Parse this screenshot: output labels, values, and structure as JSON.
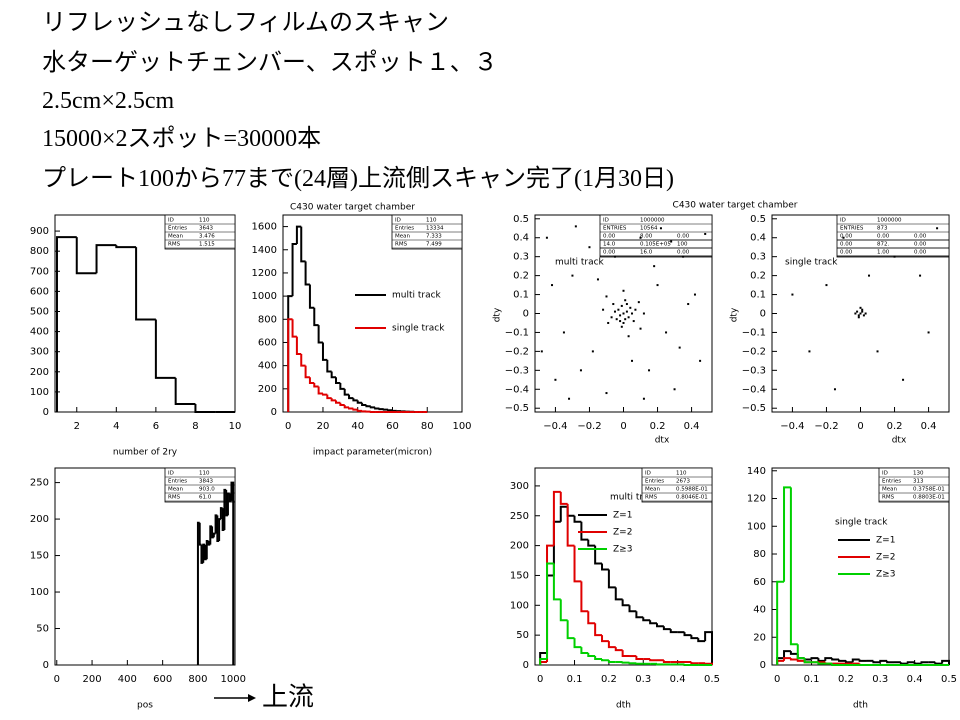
{
  "header": {
    "lines": [
      "リフレッシュなしフィルムのスキャン",
      "水ターゲットチェンバー、スポット１、３",
      "2.5cm×2.5cm",
      "15000×2スポット=30000本",
      "プレート100から77まで(24層)上流側スキャン完了(1月30日)"
    ]
  },
  "footer": {
    "label": "上流"
  },
  "chart_data": [
    {
      "type": "histogram",
      "xlabel": "number of 2ry",
      "color": "#000000",
      "bins": [
        1,
        2,
        3,
        4,
        5,
        6,
        7,
        8,
        9,
        10
      ],
      "values": [
        870,
        690,
        830,
        820,
        460,
        170,
        40,
        0,
        0
      ],
      "xlim": [
        0.9,
        10
      ],
      "ylim": [
        0,
        980
      ],
      "xticks": [
        2,
        4,
        6,
        8,
        10
      ],
      "yticks": [
        0,
        100,
        200,
        300,
        400,
        500,
        600,
        700,
        800,
        900
      ],
      "stats": {
        "rows": [
          [
            "ID",
            "110"
          ],
          [
            "Entries",
            "3643"
          ],
          [
            "Mean",
            "3.476"
          ],
          [
            "RMS",
            "1.515"
          ]
        ]
      }
    },
    {
      "type": "histogram",
      "title": "C430 water target chamber",
      "xlabel": "impact parameter(micron)",
      "bins": [
        0,
        2.5,
        5,
        7.5,
        10,
        12.5,
        15,
        17.5,
        20,
        22.5,
        25,
        27.5,
        30,
        32.5,
        35,
        37.5,
        40,
        42.5,
        45,
        47.5,
        50,
        52.5,
        55,
        57.5,
        60,
        62.5,
        65,
        67.5,
        70,
        72.5,
        75,
        77.5,
        80
      ],
      "series": [
        {
          "name": "multi track",
          "color": "#000000",
          "values": [
            1000,
            1450,
            1600,
            1300,
            1100,
            900,
            750,
            600,
            450,
            350,
            300,
            250,
            200,
            150,
            120,
            100,
            80,
            60,
            50,
            40,
            30,
            25,
            20,
            15,
            10,
            8,
            5,
            3,
            2,
            0,
            0,
            0
          ]
        },
        {
          "name": "single track",
          "color": "#e00000",
          "values": [
            800,
            650,
            500,
            400,
            300,
            250,
            220,
            160,
            150,
            120,
            100,
            80,
            60,
            40,
            30,
            20,
            10,
            5,
            3,
            0,
            0,
            0,
            0,
            0,
            0,
            0,
            0,
            0,
            0,
            0,
            0,
            0
          ]
        }
      ],
      "xlim": [
        -3,
        100
      ],
      "ylim": [
        0,
        1700
      ],
      "xticks": [
        0,
        20,
        40,
        60,
        80,
        100
      ],
      "yticks": [
        0,
        200,
        400,
        600,
        800,
        1000,
        1200,
        1400,
        1600
      ],
      "stats": {
        "rows": [
          [
            "ID",
            "110"
          ],
          [
            "Entries",
            "13334"
          ],
          [
            "Mean",
            "7.333"
          ],
          [
            "RMS",
            "7.499"
          ]
        ]
      }
    },
    {
      "type": "scatter",
      "title": "C430 water target chamber",
      "xlabel": "dtx",
      "ylabel": "dty",
      "annotation": "multi track",
      "color": "#000000",
      "x": [
        0,
        0.02,
        -0.02,
        0.01,
        -0.03,
        0.04,
        -0.01,
        0.03,
        -0.04,
        0.05,
        -0.05,
        0,
        0.02,
        -0.02,
        0.06,
        -0.06,
        0.07,
        -0.07,
        0.01,
        -0.01,
        0.09,
        -0.09,
        0.1,
        -0.1,
        0.12,
        -0.12,
        0,
        0.03,
        0.2,
        -0.18,
        0.25,
        -0.3,
        0.35,
        -0.4,
        0.42,
        -0.45,
        0.15,
        -0.2,
        0.3,
        -0.35,
        0.1,
        -0.1,
        0.45,
        -0.25,
        0.22,
        -0.05,
        0.05,
        0.38,
        -0.42,
        0.18,
        -0.15,
        0.28,
        -0.32,
        0.48,
        -0.48,
        0.12,
        -0.28,
        0.33
      ],
      "y": [
        0,
        0.01,
        -0.01,
        -0.03,
        0.02,
        0.03,
        0.04,
        -0.02,
        -0.03,
        0,
        0.01,
        -0.05,
        0.05,
        -0.04,
        -0.04,
        0.05,
        0.02,
        -0.02,
        0.07,
        -0.07,
        0.06,
        -0.05,
        -0.08,
        0.09,
        0,
        0.02,
        0.12,
        -0.12,
        0.15,
        -0.2,
        -0.1,
        0.2,
        0.3,
        -0.35,
        0.1,
        0.4,
        -0.3,
        0.35,
        -0.4,
        -0.1,
        0.4,
        -0.42,
        -0.25,
        -0.3,
        0.45,
        0.3,
        -0.25,
        0.05,
        0.15,
        0.25,
        0.18,
        0.38,
        -0.45,
        0.42,
        -0.2,
        -0.45,
        0.46,
        -0.18
      ],
      "xlim": [
        -0.52,
        0.52
      ],
      "ylim": [
        -0.52,
        0.52
      ],
      "xticks": [
        {
          "value": -0.4,
          "label": "−0.4"
        },
        {
          "value": -0.2,
          "label": "−0.2"
        },
        0,
        0.2,
        0.4
      ],
      "yticks": [
        {
          "value": -0.5,
          "label": "−0.5"
        },
        {
          "value": -0.4,
          "label": "−0.4"
        },
        {
          "value": -0.3,
          "label": "−0.3"
        },
        {
          "value": -0.2,
          "label": "−0.2"
        },
        {
          "value": -0.1,
          "label": "−0.1"
        },
        0,
        0.1,
        0.2,
        0.3,
        0.4,
        0.5
      ],
      "stats": {
        "rows": [
          [
            "ID",
            "1000000"
          ],
          [
            "ENTRIES",
            "10564"
          ]
        ],
        "grid": [
          [
            "0.00",
            "8.00",
            "0.00"
          ],
          [
            "14.0",
            "0.105E+05",
            "100"
          ],
          [
            "0.00",
            "16.0",
            "0.00"
          ]
        ]
      }
    },
    {
      "type": "scatter",
      "xlabel": "dtx",
      "ylabel": "dty",
      "annotation": "single track",
      "color": "#000000",
      "x": [
        0,
        0.01,
        -0.01,
        0.02,
        -0.02,
        0.01,
        -0.01,
        0.03,
        0,
        -0.03,
        0.2,
        -0.3,
        0.4,
        -0.1,
        0.25,
        -0.4,
        0.1,
        -0.2,
        0.35,
        -0.15,
        0.45,
        0.05
      ],
      "y": [
        0,
        0.01,
        -0.01,
        -0.01,
        0.01,
        0.02,
        -0.02,
        0,
        0.03,
        0,
        0.3,
        -0.2,
        -0.1,
        0.4,
        -0.35,
        0.1,
        -0.2,
        0.15,
        0.2,
        -0.4,
        0.45,
        0.2
      ],
      "xlim": [
        -0.52,
        0.52
      ],
      "ylim": [
        -0.52,
        0.52
      ],
      "xticks": [
        {
          "value": -0.4,
          "label": "−0.4"
        },
        {
          "value": -0.2,
          "label": "−0.2"
        },
        0,
        0.2,
        0.4
      ],
      "yticks": [
        {
          "value": -0.5,
          "label": "−0.5"
        },
        {
          "value": -0.4,
          "label": "−0.4"
        },
        {
          "value": -0.3,
          "label": "−0.3"
        },
        {
          "value": -0.2,
          "label": "−0.2"
        },
        {
          "value": -0.1,
          "label": "−0.1"
        },
        0,
        0.1,
        0.2,
        0.3,
        0.4,
        0.5
      ],
      "stats": {
        "rows": [
          [
            "ID",
            "1000000"
          ],
          [
            "ENTRIES",
            "873"
          ]
        ],
        "grid": [
          [
            "0.00",
            "0.00",
            "0.00"
          ],
          [
            "0.00",
            "872.",
            "0.00"
          ],
          [
            "0.00",
            "1.00",
            "0.00"
          ]
        ]
      }
    },
    {
      "type": "histogram",
      "xlabel": "pos",
      "color": "#000000",
      "bins": [
        800,
        810,
        820,
        830,
        840,
        850,
        860,
        870,
        880,
        890,
        900,
        910,
        920,
        930,
        940,
        950,
        960,
        970,
        980,
        990,
        1000
      ],
      "values": [
        195,
        165,
        140,
        165,
        145,
        170,
        165,
        190,
        175,
        180,
        205,
        170,
        200,
        215,
        185,
        240,
        205,
        235,
        225,
        250
      ],
      "xlim": [
        -10,
        1010
      ],
      "ylim": [
        0,
        270
      ],
      "xticks": [
        0,
        200,
        400,
        600,
        800,
        1000
      ],
      "yticks": [
        0,
        50,
        100,
        150,
        200,
        250
      ],
      "stats": {
        "rows": [
          [
            "ID",
            "110"
          ],
          [
            "Entries",
            "3843"
          ],
          [
            "Mean",
            "903.0"
          ],
          [
            "RMS",
            "61.0"
          ]
        ]
      }
    },
    {
      "type": "histogram",
      "xlabel": "dth",
      "annotation": "multi track",
      "bins": [
        0,
        0.02,
        0.04,
        0.06,
        0.08,
        0.1,
        0.12,
        0.14,
        0.16,
        0.18,
        0.2,
        0.22,
        0.24,
        0.26,
        0.28,
        0.3,
        0.32,
        0.34,
        0.36,
        0.38,
        0.4,
        0.42,
        0.44,
        0.46,
        0.48,
        0.5
      ],
      "series": [
        {
          "name": "Z=1",
          "color": "#000000",
          "values": [
            20,
            150,
            240,
            265,
            250,
            240,
            210,
            200,
            170,
            160,
            130,
            110,
            100,
            90,
            80,
            75,
            70,
            65,
            60,
            55,
            55,
            50,
            45,
            40,
            55
          ]
        },
        {
          "name": "Z=2",
          "color": "#e00000",
          "values": [
            5,
            200,
            290,
            270,
            200,
            140,
            90,
            70,
            50,
            40,
            30,
            25,
            15,
            15,
            10,
            10,
            8,
            8,
            5,
            5,
            5,
            5,
            3,
            3,
            2
          ]
        },
        {
          "name": "Z≥3",
          "color": "#00d000",
          "values": [
            10,
            170,
            110,
            75,
            45,
            30,
            20,
            15,
            10,
            8,
            5,
            5,
            4,
            3,
            2,
            2,
            2,
            1,
            1,
            1,
            1,
            0,
            0,
            0,
            0
          ]
        }
      ],
      "xlim": [
        -0.015,
        0.5
      ],
      "ylim": [
        0,
        330
      ],
      "xticks": [
        0,
        0.1,
        0.2,
        0.3,
        0.4,
        0.5
      ],
      "yticks": [
        0,
        50,
        100,
        150,
        200,
        250,
        300
      ],
      "stats": {
        "rows": [
          [
            "ID",
            "110"
          ],
          [
            "Entries",
            "2673"
          ],
          [
            "Mean",
            "0.5988E-01"
          ],
          [
            "RMS",
            "0.8046E-01"
          ]
        ]
      }
    },
    {
      "type": "histogram",
      "xlabel": "dth",
      "annotation": "single track",
      "bins": [
        0,
        0.02,
        0.04,
        0.06,
        0.08,
        0.1,
        0.12,
        0.14,
        0.16,
        0.18,
        0.2,
        0.22,
        0.24,
        0.26,
        0.28,
        0.3,
        0.32,
        0.34,
        0.36,
        0.38,
        0.4,
        0.42,
        0.44,
        0.46,
        0.48,
        0.5
      ],
      "series": [
        {
          "name": "Z=1",
          "color": "#000000",
          "values": [
            5,
            10,
            8,
            5,
            4,
            5,
            3,
            5,
            4,
            3,
            2,
            4,
            3,
            3,
            2,
            3,
            2,
            2,
            1,
            2,
            1,
            2,
            2,
            1,
            3
          ]
        },
        {
          "name": "Z=2",
          "color": "#e00000",
          "values": [
            3,
            5,
            4,
            3,
            2,
            2,
            2,
            1,
            1,
            1,
            1,
            1,
            0,
            0,
            0,
            0,
            0,
            0,
            0,
            0,
            0,
            0,
            0,
            0,
            0
          ]
        },
        {
          "name": "Z≥3",
          "color": "#00d000",
          "values": [
            60,
            128,
            15,
            5,
            2,
            2,
            1,
            1,
            0,
            0,
            0,
            0,
            0,
            0,
            0,
            0,
            0,
            0,
            0,
            0,
            0,
            0,
            0,
            0,
            0
          ]
        }
      ],
      "xlim": [
        -0.015,
        0.5
      ],
      "ylim": [
        0,
        142
      ],
      "xticks": [
        0,
        0.1,
        0.2,
        0.3,
        0.4,
        0.5
      ],
      "yticks": [
        0,
        20,
        40,
        60,
        80,
        100,
        120,
        140
      ],
      "stats": {
        "rows": [
          [
            "ID",
            "130"
          ],
          [
            "Entries",
            "313"
          ],
          [
            "Mean",
            "0.3758E-01"
          ],
          [
            "RMS",
            "0.8803E-01"
          ]
        ]
      }
    }
  ]
}
